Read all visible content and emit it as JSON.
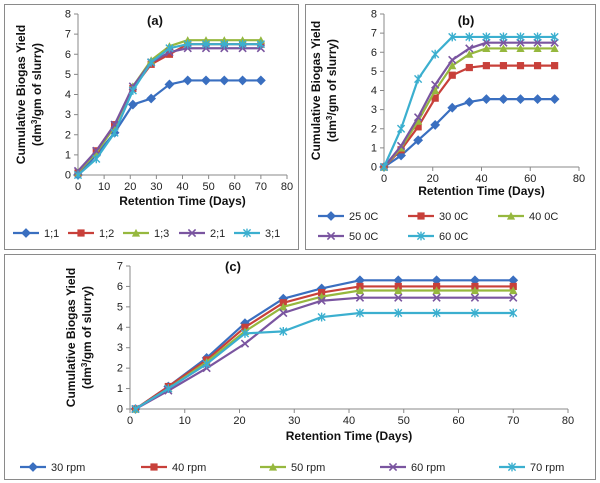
{
  "chart_data": [
    {
      "type": "line",
      "title": "(a)",
      "xlabel": "Retention Time (Days)",
      "ylabel_line1": "Cumulative Biogas Yield",
      "ylabel_line2_pre": "(dm",
      "ylabel_line2_sup": "3",
      "ylabel_line2_post": "/gm of slurry)",
      "xlim": [
        0,
        80
      ],
      "ylim": [
        0,
        8
      ],
      "xticks": [
        0,
        10,
        20,
        30,
        40,
        50,
        60,
        70,
        80
      ],
      "yticks": [
        0,
        1,
        2,
        3,
        4,
        5,
        6,
        7,
        8
      ],
      "grid": false,
      "legend_position": "bottom",
      "series": [
        {
          "name": "1;1",
          "color": "#3a6fc0",
          "marker": "diamond",
          "x": [
            0,
            7,
            14,
            21,
            28,
            35,
            42,
            49,
            56,
            63,
            70
          ],
          "y": [
            0,
            1.0,
            2.1,
            3.5,
            3.8,
            4.5,
            4.7,
            4.7,
            4.7,
            4.7,
            4.7
          ]
        },
        {
          "name": "1;2",
          "color": "#c8403a",
          "marker": "square",
          "x": [
            0,
            7,
            14,
            21,
            28,
            35,
            42,
            49,
            56,
            63,
            70
          ],
          "y": [
            0.1,
            1.2,
            2.5,
            4.3,
            5.5,
            6.0,
            6.5,
            6.5,
            6.5,
            6.5,
            6.5
          ]
        },
        {
          "name": "1;3",
          "color": "#96b83e",
          "marker": "triangle",
          "x": [
            0,
            7,
            14,
            21,
            28,
            35,
            42,
            49,
            56,
            63,
            70
          ],
          "y": [
            0.15,
            1.1,
            2.4,
            4.4,
            5.7,
            6.4,
            6.7,
            6.7,
            6.7,
            6.7,
            6.7
          ]
        },
        {
          "name": "2;1",
          "color": "#7a55a0",
          "marker": "x",
          "x": [
            0,
            7,
            14,
            21,
            28,
            35,
            42,
            49,
            56,
            63,
            70
          ],
          "y": [
            0.2,
            1.2,
            2.5,
            4.4,
            5.6,
            6.1,
            6.3,
            6.3,
            6.3,
            6.3,
            6.3
          ]
        },
        {
          "name": "3;1",
          "color": "#3bafcf",
          "marker": "star",
          "x": [
            0,
            7,
            14,
            21,
            28,
            35,
            42,
            49,
            56,
            63,
            70
          ],
          "y": [
            0,
            0.8,
            2.1,
            4.2,
            5.6,
            6.3,
            6.5,
            6.5,
            6.5,
            6.5,
            6.5
          ]
        }
      ]
    },
    {
      "type": "line",
      "title": "(b)",
      "xlabel": "Retention Time (Days)",
      "ylabel_line1": "Cumulative Biogas Yield",
      "ylabel_line2_pre": "(dm",
      "ylabel_line2_sup": "3",
      "ylabel_line2_post": "/gm of slurry)",
      "xlim": [
        0,
        80
      ],
      "ylim": [
        0,
        8
      ],
      "xticks": [
        0,
        20,
        40,
        60,
        80
      ],
      "yticks": [
        0,
        1,
        2,
        3,
        4,
        5,
        6,
        7,
        8
      ],
      "grid": false,
      "legend_position": "bottom",
      "series": [
        {
          "name": "25 0C",
          "color": "#3a6fc0",
          "marker": "diamond",
          "x": [
            0,
            7,
            14,
            21,
            28,
            35,
            42,
            49,
            56,
            63,
            70
          ],
          "y": [
            0,
            0.6,
            1.4,
            2.2,
            3.1,
            3.4,
            3.55,
            3.55,
            3.55,
            3.55,
            3.55
          ]
        },
        {
          "name": "30 0C",
          "color": "#c8403a",
          "marker": "square",
          "x": [
            0,
            7,
            14,
            21,
            28,
            35,
            42,
            49,
            56,
            63,
            70
          ],
          "y": [
            0,
            0.9,
            2.1,
            3.6,
            4.8,
            5.2,
            5.3,
            5.3,
            5.3,
            5.3,
            5.3
          ]
        },
        {
          "name": "40 0C",
          "color": "#96b83e",
          "marker": "triangle",
          "x": [
            0,
            7,
            14,
            21,
            28,
            35,
            42,
            49,
            56,
            63,
            70
          ],
          "y": [
            0,
            1.0,
            2.4,
            4.0,
            5.3,
            5.9,
            6.2,
            6.2,
            6.2,
            6.2,
            6.2
          ]
        },
        {
          "name": "50  0C",
          "color": "#7a55a0",
          "marker": "x",
          "x": [
            0,
            7,
            14,
            21,
            28,
            35,
            42,
            49,
            56,
            63,
            70
          ],
          "y": [
            0,
            1.1,
            2.6,
            4.3,
            5.6,
            6.2,
            6.5,
            6.5,
            6.5,
            6.5,
            6.5
          ]
        },
        {
          "name": "60  0C",
          "color": "#3bafcf",
          "marker": "star",
          "x": [
            0,
            7,
            14,
            21,
            28,
            35,
            42,
            49,
            56,
            63,
            70
          ],
          "y": [
            0,
            2.0,
            4.6,
            5.9,
            6.8,
            6.8,
            6.8,
            6.8,
            6.8,
            6.8,
            6.8
          ]
        }
      ]
    },
    {
      "type": "line",
      "title": "(c)",
      "xlabel": "Retention Time (Days)",
      "ylabel_line1": "Cumulative Biogas Yield",
      "ylabel_line2_pre": "(dm",
      "ylabel_line2_sup": "3",
      "ylabel_line2_post": "/gm of slurry)",
      "xlim": [
        0,
        80
      ],
      "ylim": [
        0,
        7
      ],
      "xticks": [
        0,
        10,
        20,
        30,
        40,
        50,
        60,
        70,
        80
      ],
      "yticks": [
        0,
        1,
        2,
        3,
        4,
        5,
        6,
        7
      ],
      "grid": false,
      "legend_position": "bottom",
      "series": [
        {
          "name": "30 rpm",
          "color": "#3a6fc0",
          "marker": "diamond",
          "x": [
            1,
            7,
            14,
            21,
            28,
            35,
            42,
            49,
            56,
            63,
            70
          ],
          "y": [
            0,
            1.1,
            2.5,
            4.2,
            5.4,
            5.9,
            6.3,
            6.3,
            6.3,
            6.3,
            6.3
          ]
        },
        {
          "name": "40 rpm",
          "color": "#c8403a",
          "marker": "square",
          "x": [
            1,
            7,
            14,
            21,
            28,
            35,
            42,
            49,
            56,
            63,
            70
          ],
          "y": [
            0,
            1.1,
            2.4,
            4.0,
            5.2,
            5.7,
            6.0,
            6.0,
            6.0,
            6.0,
            6.0
          ]
        },
        {
          "name": "50 rpm",
          "color": "#96b83e",
          "marker": "triangle",
          "x": [
            1,
            7,
            14,
            21,
            28,
            35,
            42,
            49,
            56,
            63,
            70
          ],
          "y": [
            0,
            1.0,
            2.3,
            3.8,
            5.0,
            5.5,
            5.8,
            5.8,
            5.8,
            5.8,
            5.8
          ]
        },
        {
          "name": "60 rpm",
          "color": "#7a55a0",
          "marker": "x",
          "x": [
            1,
            7,
            14,
            21,
            28,
            35,
            42,
            49,
            56,
            63,
            70
          ],
          "y": [
            0,
            0.9,
            2.0,
            3.2,
            4.7,
            5.3,
            5.45,
            5.45,
            5.45,
            5.45,
            5.45
          ]
        },
        {
          "name": "70 rpm",
          "color": "#3bafcf",
          "marker": "star",
          "x": [
            1,
            7,
            14,
            21,
            28,
            35,
            42,
            49,
            56,
            63,
            70
          ],
          "y": [
            0,
            1.0,
            2.2,
            3.7,
            3.8,
            4.5,
            4.7,
            4.7,
            4.7,
            4.7,
            4.7
          ]
        }
      ]
    }
  ]
}
